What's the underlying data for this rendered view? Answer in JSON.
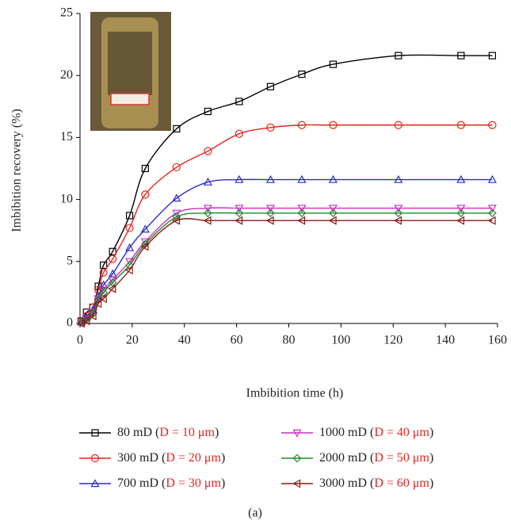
{
  "chart_data": {
    "type": "line",
    "x_label": "Imbibition time (h)",
    "y_label": "Imbibition recovery (%)",
    "caption": "(a)",
    "xlim": [
      0,
      160
    ],
    "xticks": [
      0,
      20,
      40,
      60,
      80,
      100,
      120,
      140,
      160
    ],
    "ylim": [
      0,
      25
    ],
    "yticks": [
      0,
      5,
      10,
      15,
      20,
      25
    ],
    "x": [
      0.5,
      2.5,
      5,
      7,
      9,
      12.5,
      19,
      25,
      37,
      49,
      61,
      73,
      85,
      97,
      122,
      146,
      158
    ],
    "series": [
      {
        "name": "80 mD (D = 10 μm)",
        "color": "#000000",
        "marker": "square",
        "values": [
          0.2,
          0.9,
          1.3,
          3.0,
          4.7,
          5.8,
          8.7,
          12.5,
          15.7,
          17.1,
          17.9,
          19.1,
          20.1,
          20.9,
          21.6,
          21.6,
          21.6
        ]
      },
      {
        "name": "300 mD (D = 20 μm)",
        "color": "#e8231f",
        "marker": "circle",
        "values": [
          0.2,
          0.6,
          1.3,
          2.7,
          4.1,
          5.2,
          7.7,
          10.4,
          12.6,
          13.9,
          15.3,
          15.8,
          16.0,
          16.0,
          16.0,
          16.0,
          16.0
        ]
      },
      {
        "name": "700 mD (D = 30 μm)",
        "color": "#2c2cc8",
        "marker": "triangle-up",
        "values": [
          0.1,
          0.5,
          1.1,
          2.2,
          3.1,
          4.0,
          6.1,
          7.6,
          10.1,
          11.4,
          11.6,
          11.6,
          11.6,
          11.6,
          11.6,
          11.6,
          11.6
        ]
      },
      {
        "name": "1000 mD (D = 40 μm)",
        "color": "#c430c4",
        "marker": "triangle-down",
        "values": [
          0.1,
          0.4,
          0.9,
          2.0,
          2.7,
          3.5,
          5.0,
          6.6,
          8.9,
          9.3,
          9.3,
          9.3,
          9.3,
          9.3,
          9.3,
          9.3,
          9.3
        ]
      },
      {
        "name": "2000 mD (D = 50 μm)",
        "color": "#1e8c2a",
        "marker": "diamond",
        "values": [
          0.1,
          0.3,
          0.8,
          1.9,
          2.5,
          3.3,
          4.7,
          6.4,
          8.6,
          8.9,
          8.9,
          8.9,
          8.9,
          8.9,
          8.9,
          8.9,
          8.9
        ]
      },
      {
        "name": "3000 mD (D = 60 μm)",
        "color": "#8b1a1a",
        "marker": "triangle-left",
        "values": [
          0.0,
          0.2,
          0.6,
          1.6,
          2.0,
          2.8,
          4.3,
          6.2,
          8.3,
          8.3,
          8.3,
          8.3,
          8.3,
          8.3,
          8.3,
          8.3,
          8.3
        ]
      }
    ]
  }
}
